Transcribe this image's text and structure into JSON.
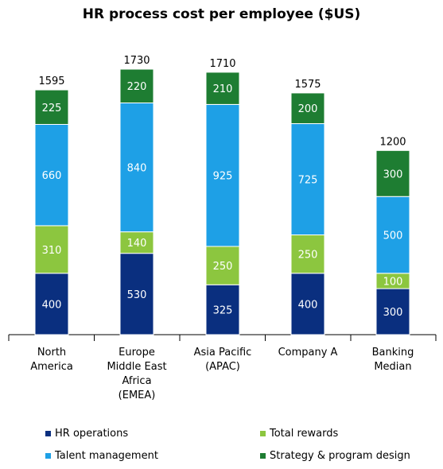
{
  "chart_data": {
    "type": "bar",
    "stacked": true,
    "title": "HR process cost per employee ($US)",
    "xlabel": "",
    "ylabel": "",
    "categories": [
      [
        "North",
        "America"
      ],
      [
        "Europe",
        "Middle East",
        "Africa",
        "(EMEA)"
      ],
      [
        "Asia Pacific",
        "(APAC)"
      ],
      [
        "Company A"
      ],
      [
        "Banking",
        "Median"
      ]
    ],
    "series": [
      {
        "name": "HR operations",
        "color": "#0a2f7f",
        "values": [
          400,
          530,
          325,
          400,
          300
        ]
      },
      {
        "name": "Total rewards",
        "color": "#8cc63f",
        "values": [
          310,
          140,
          250,
          250,
          100
        ]
      },
      {
        "name": "Talent management",
        "color": "#1ea0e6",
        "values": [
          660,
          840,
          925,
          725,
          500
        ]
      },
      {
        "name": "Strategy & program design",
        "color": "#1e7d32",
        "values": [
          225,
          220,
          210,
          200,
          300
        ]
      }
    ],
    "totals": [
      1595,
      1730,
      1710,
      1575,
      1200
    ],
    "ylim": [
      0,
      1730
    ],
    "grid": false,
    "legend_position": "bottom"
  }
}
